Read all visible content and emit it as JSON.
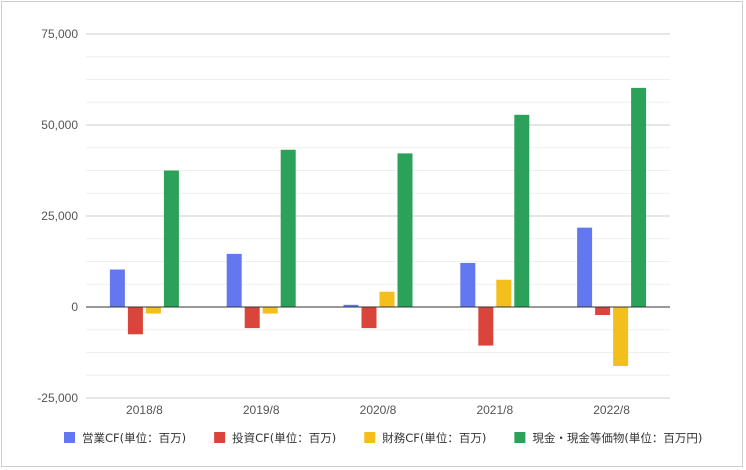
{
  "chart_data": {
    "type": "bar",
    "title": "",
    "xlabel": "",
    "ylabel": "",
    "categories": [
      "2018/8",
      "2019/8",
      "2020/8",
      "2021/8",
      "2022/8"
    ],
    "ylim": [
      -25000,
      75000
    ],
    "yticks": [
      -25000,
      0,
      25000,
      50000,
      75000
    ],
    "ytick_labels": [
      "-25,000",
      "0",
      "25,000",
      "50,000",
      "75,000"
    ],
    "grid": true,
    "legend_position": "bottom",
    "series": [
      {
        "name": "営業CF(単位：百万)",
        "color": "#6378f0",
        "values": [
          10300,
          14600,
          600,
          12100,
          21800
        ]
      },
      {
        "name": "投資CF(単位：百万)",
        "color": "#d9443b",
        "values": [
          -7500,
          -5800,
          -5800,
          -10600,
          -2200
        ]
      },
      {
        "name": "財務CF(単位：百万)",
        "color": "#f2bf1c",
        "values": [
          -1800,
          -1800,
          4200,
          7500,
          -16200
        ]
      },
      {
        "name": "現金・現金等価物(単位：百万円)",
        "color": "#2ba15a",
        "values": [
          37500,
          43200,
          42200,
          52800,
          60200
        ]
      }
    ]
  }
}
